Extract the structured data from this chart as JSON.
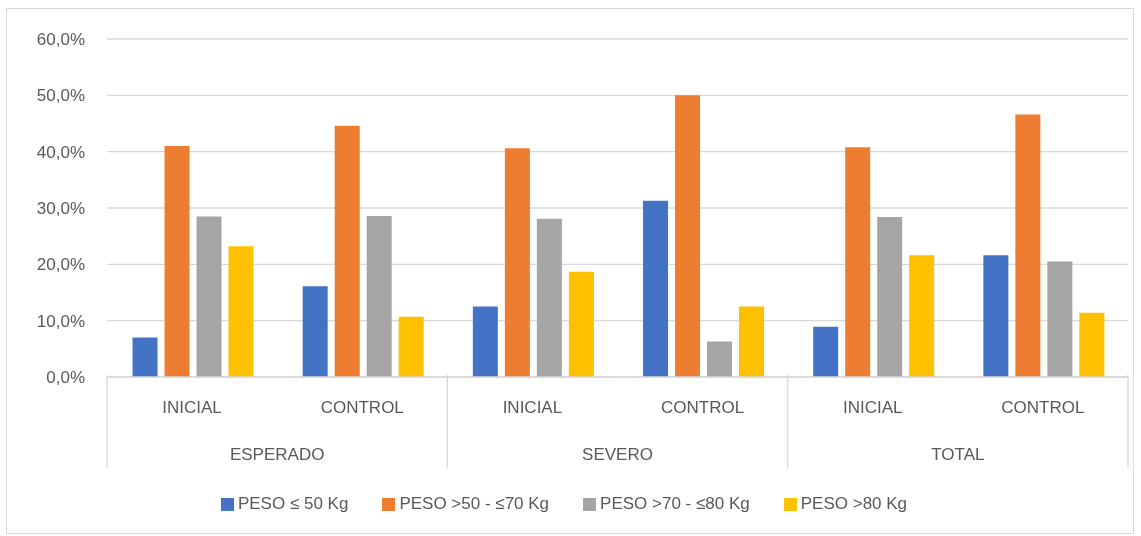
{
  "chart_data": {
    "type": "bar",
    "categories": [
      "INICIAL",
      "CONTROL",
      "INICIAL",
      "CONTROL",
      "INICIAL",
      "CONTROL"
    ],
    "annotations": [
      "ESPERADO",
      "SEVERO",
      "TOTAL"
    ],
    "series": [
      {
        "name": "PESO ≤ 50 Kg",
        "color": "#4472c4",
        "values": [
          7.0,
          16.1,
          12.5,
          31.3,
          8.9,
          21.6
        ]
      },
      {
        "name": "PESO >50 - ≤70 Kg",
        "color": "#ed7d31",
        "values": [
          41.0,
          44.6,
          40.6,
          50.0,
          40.8,
          46.6
        ]
      },
      {
        "name": "PESO >70 - ≤80 Kg",
        "color": "#a5a5a5",
        "values": [
          28.5,
          28.6,
          28.1,
          6.3,
          28.4,
          20.5
        ]
      },
      {
        "name": "PESO >80 Kg",
        "color": "#ffc000",
        "values": [
          23.2,
          10.7,
          18.7,
          12.5,
          21.6,
          11.4
        ]
      }
    ],
    "ylim": [
      0,
      60
    ],
    "yticks": [
      {
        "value": 0,
        "label": "0,0%"
      },
      {
        "value": 10,
        "label": "10,0%"
      },
      {
        "value": 20,
        "label": "20,0%"
      },
      {
        "value": 30,
        "label": "30,0%"
      },
      {
        "value": 40,
        "label": "40,0%"
      },
      {
        "value": 50,
        "label": "50,0%"
      },
      {
        "value": 60,
        "label": "60,0%"
      }
    ],
    "grid": "y",
    "legend": "bottom"
  }
}
